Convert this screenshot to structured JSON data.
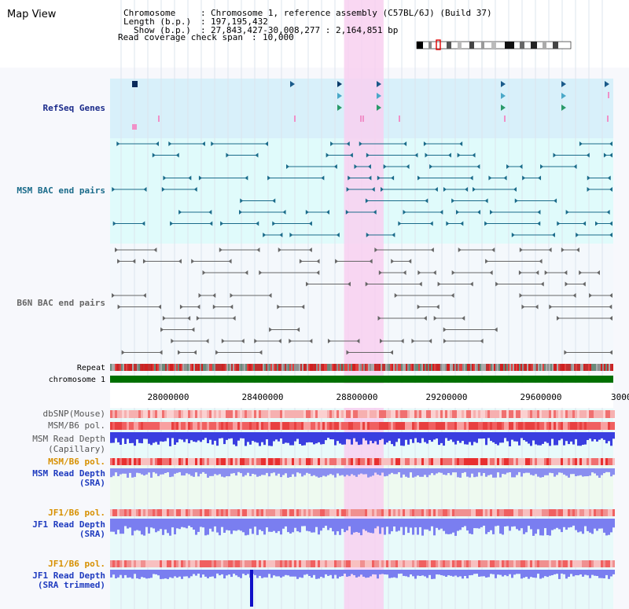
{
  "title": "Map View",
  "header": {
    "chromosome_label": "Chromosome",
    "chromosome_value": "Chromosome 1, reference assembly (C57BL/6J) (Build 37)",
    "length_label": "Length (b.p.)",
    "length_value": "197,195,432",
    "show_label": "Show (b.p.)",
    "show_value": "27,843,427-30,008,277 : 2,164,851 bp",
    "coverage_label": "Read coverage check span",
    "coverage_value": "10,000"
  },
  "tracks": {
    "refseq": "RefSeq Genes",
    "msm_bac": "MSM BAC end pairs",
    "b6n_bac": "B6N BAC end pairs",
    "repeat": "Repeat",
    "chromosome": "chromosome 1",
    "dbsnp": "dbSNP(Mouse)",
    "msm_b6_pol_1": "MSM/B6 pol.",
    "msm_depth_cap_1": "MSM Read Depth",
    "msm_depth_cap_2": "(Capillary)",
    "msm_b6_pol_2": "MSM/B6 pol.",
    "msm_depth_sra_1": "MSM Read Depth",
    "msm_depth_sra_2": "(SRA)",
    "jf1_b6_pol_1": "JF1/B6 pol.",
    "jf1_depth_sra_1": "JF1 Read Depth",
    "jf1_depth_sra_2": "(SRA)",
    "jf1_b6_pol_2": "JF1/B6 pol.",
    "jf1_depth_trim_1": "JF1 Read Depth",
    "jf1_depth_trim_2": "(SRA trimmed)"
  },
  "axis": {
    "range_bp": [
      27843427,
      30008277
    ],
    "ticks": [
      "28000000",
      "28400000",
      "28800000",
      "29200000",
      "29600000",
      "3000"
    ]
  },
  "highlight_bp": [
    28850000,
    29020000
  ],
  "colors": {
    "refseq_bg": "#d8f0fa",
    "bac_bg": "#e0fbfb",
    "b6n_bg": "#f4f8fc",
    "highlight": "#f8d0f0",
    "msm_feature": "#1a6b8a",
    "b6n_feature": "#666666",
    "label_navy": "#1a2a8a",
    "label_teal": "#1a6b8a",
    "label_orange": "#d79000",
    "label_blue": "#1f3bbf",
    "chromosome_bar": "#007000",
    "depth_blue": "#3a3ee0",
    "depth_light": "#8a8ef0",
    "pol_red": "#ee4444"
  }
}
